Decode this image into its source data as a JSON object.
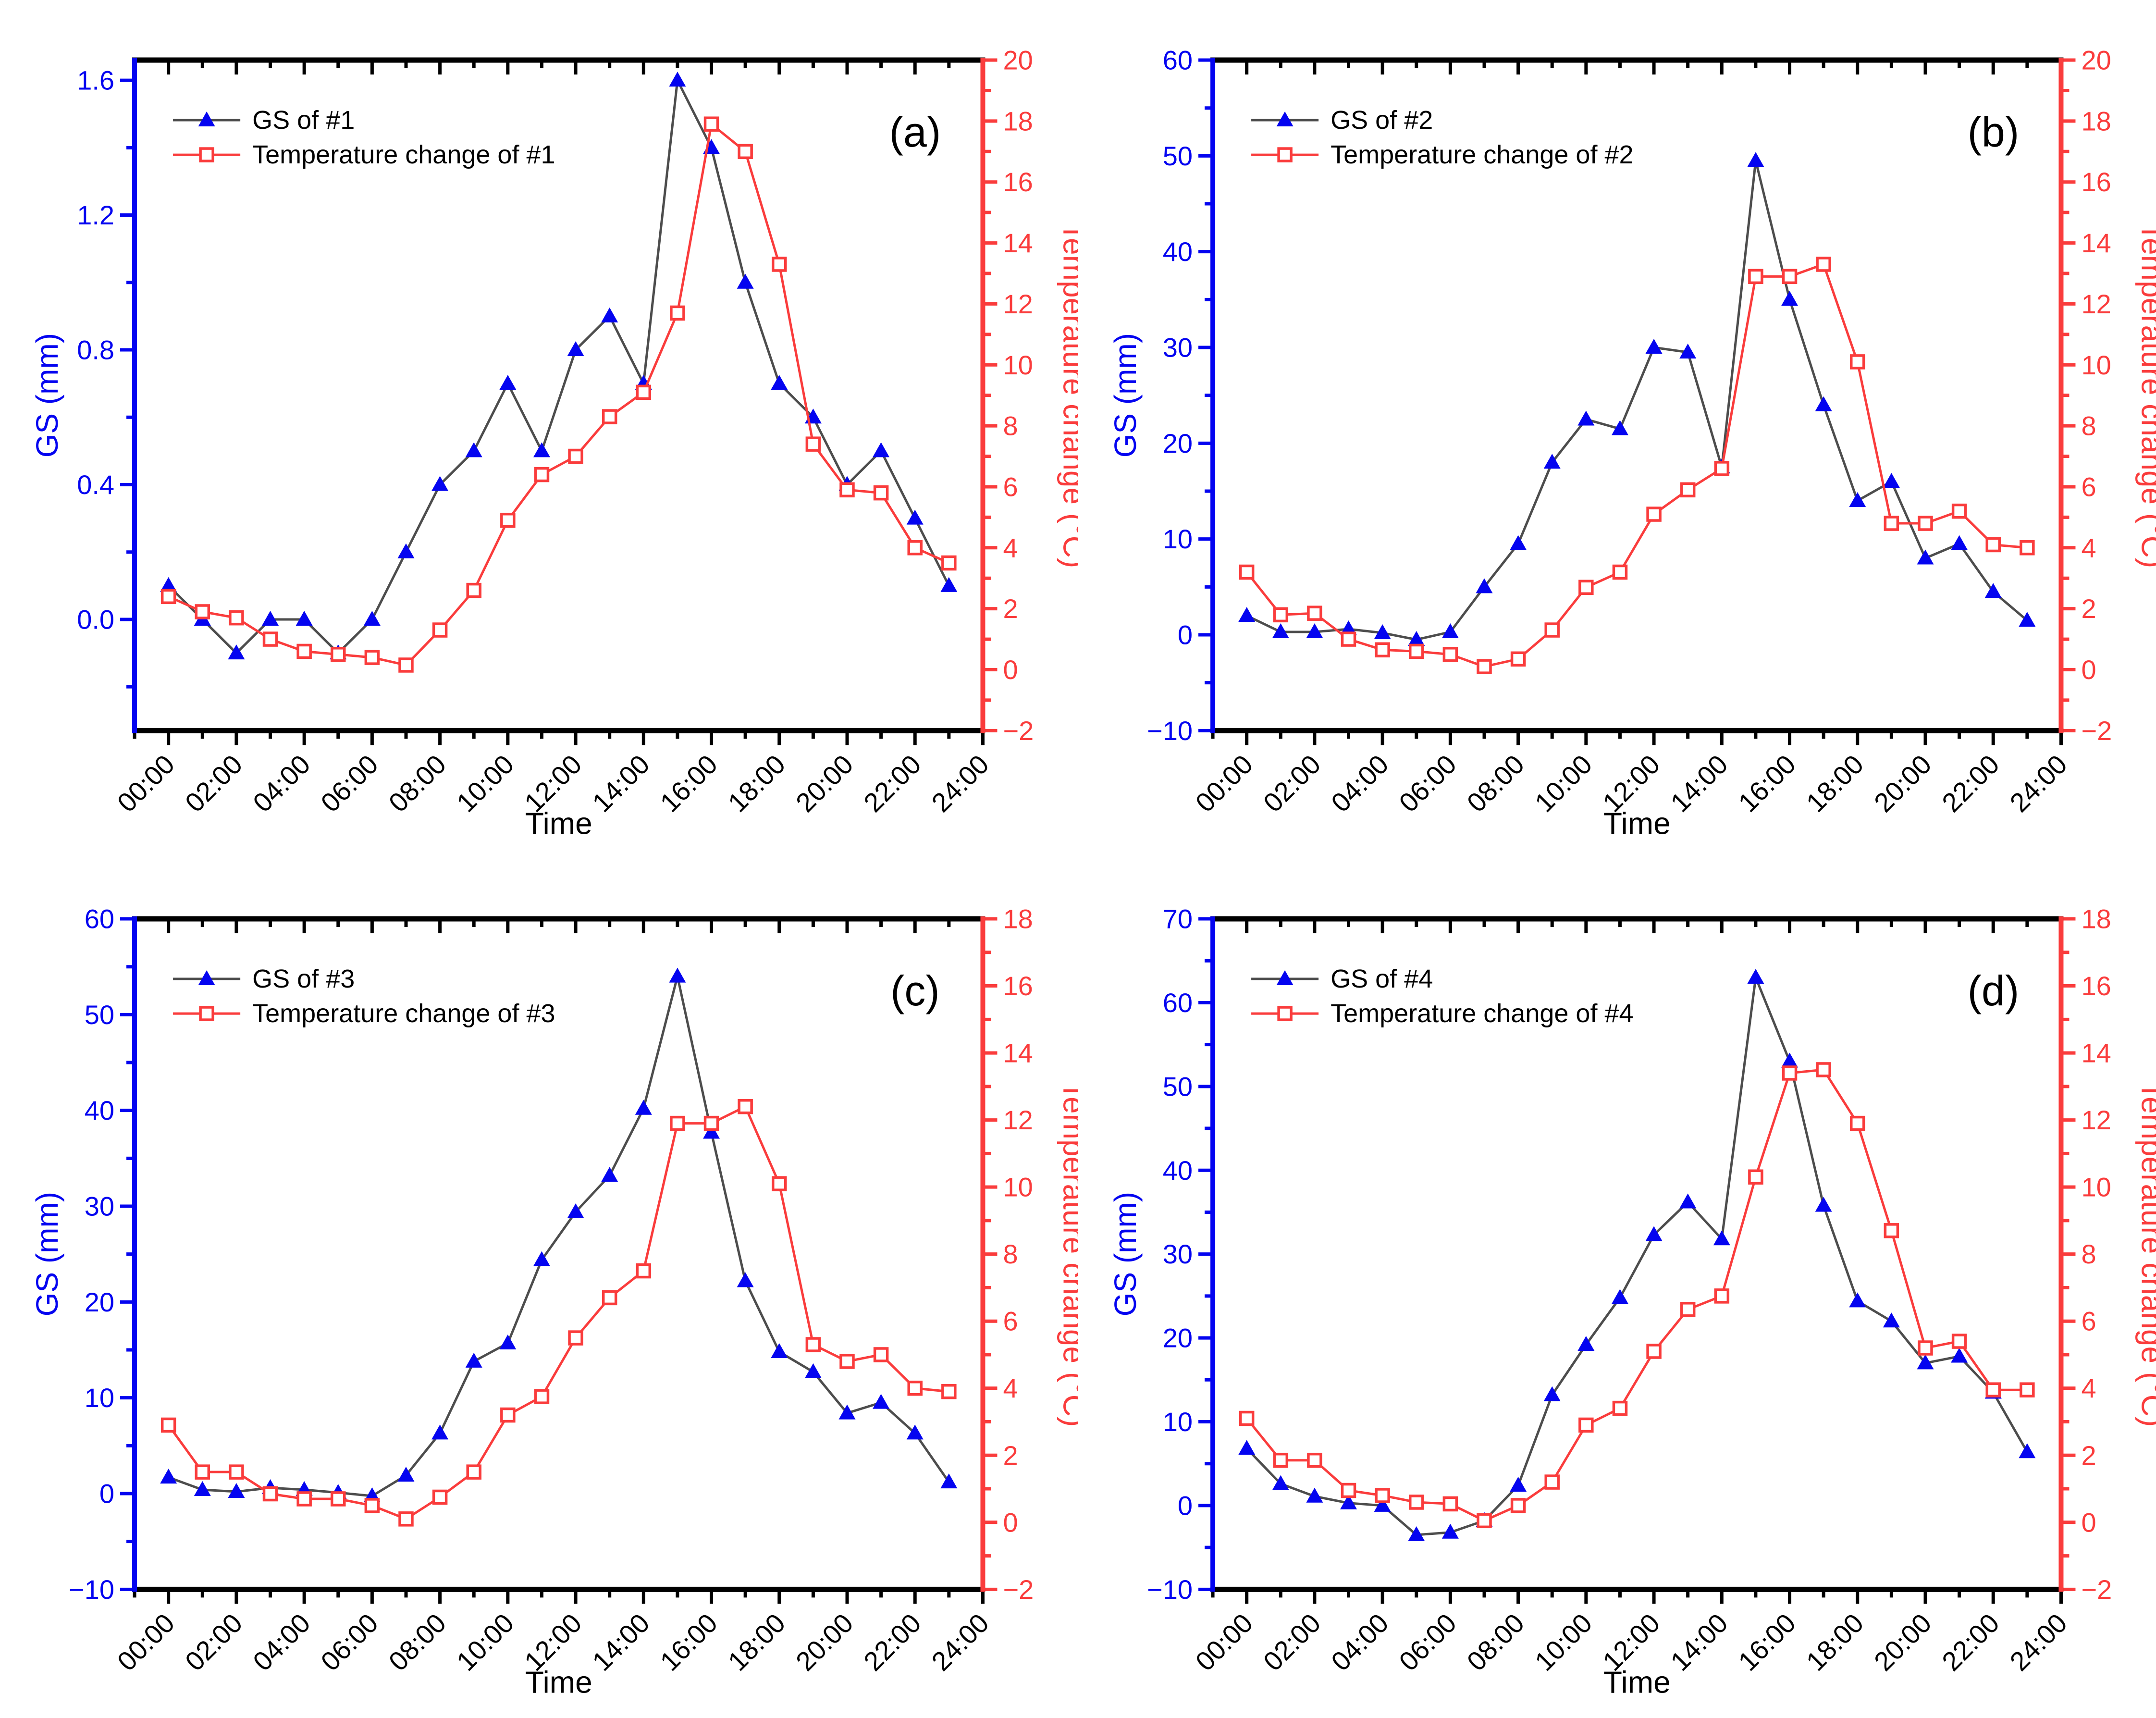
{
  "figure": {
    "xlabel": "Time",
    "left_ylabel": "GS (mm)",
    "right_ylabel": "Temperature change (°C)",
    "colors": {
      "gs_marker_blue": "#0404f0",
      "gs_line_gray": "#4d4d4d",
      "temp_red": "#fa3c3c",
      "left_axis_blue": "#0404f0",
      "right_axis_red": "#fa3c3c",
      "frame_black": "#000000",
      "background": "#ffffff"
    }
  },
  "chart_data": [
    {
      "type": "line",
      "tag": "(a)",
      "xlabel": "Time",
      "left_ylabel": "GS (mm)",
      "right_ylabel": "Temperature change (°C)",
      "legend": [
        "GS of #1",
        "Temperature change of #1"
      ],
      "legend_position": "top-left",
      "grid": false,
      "x_hours": [
        0,
        1,
        2,
        3,
        4,
        5,
        6,
        7,
        8,
        9,
        10,
        11,
        12,
        13,
        14,
        15,
        16,
        17,
        18,
        19,
        20,
        21,
        22,
        23
      ],
      "x_tick_labels": [
        "00:00",
        "02:00",
        "04:00",
        "06:00",
        "08:00",
        "10:00",
        "12:00",
        "14:00",
        "16:00",
        "18:00",
        "20:00",
        "22:00",
        "24:00"
      ],
      "x_axis": {
        "min": -1,
        "max": 24,
        "major_step": 2,
        "minor_step": 1
      },
      "left_axis": {
        "min": -0.33,
        "max": 1.66,
        "major_step": 0.4,
        "minor_step": 0.2,
        "decimals": 1
      },
      "right_axis": {
        "min": -2,
        "max": 20,
        "major_step": 2,
        "minor_step": 1,
        "decimals": 0
      },
      "series": [
        {
          "name": "GS of #1",
          "axis": "left",
          "values": [
            0.1,
            0.0,
            -0.1,
            0.0,
            0.0,
            -0.1,
            0.0,
            0.2,
            0.4,
            0.5,
            0.7,
            0.5,
            0.8,
            0.9,
            0.7,
            1.6,
            1.4,
            1.0,
            0.7,
            0.6,
            0.4,
            0.5,
            0.3,
            0.1
          ]
        },
        {
          "name": "Temperature change of #1",
          "axis": "right",
          "values": [
            2.4,
            1.9,
            1.7,
            1.0,
            0.6,
            0.5,
            0.4,
            0.15,
            1.3,
            2.6,
            4.9,
            6.4,
            7.0,
            8.3,
            9.1,
            11.7,
            17.9,
            17.0,
            13.3,
            7.4,
            5.9,
            5.8,
            4.0,
            3.5
          ]
        }
      ]
    },
    {
      "type": "line",
      "tag": "(b)",
      "xlabel": "Time",
      "left_ylabel": "GS (mm)",
      "right_ylabel": "Temperature change (°C)",
      "legend": [
        "GS of #2",
        "Temperature change of #2"
      ],
      "legend_position": "top-left",
      "grid": false,
      "x_hours": [
        0,
        1,
        2,
        3,
        4,
        5,
        6,
        7,
        8,
        9,
        10,
        11,
        12,
        13,
        14,
        15,
        16,
        17,
        18,
        19,
        20,
        21,
        22,
        23
      ],
      "x_tick_labels": [
        "00:00",
        "02:00",
        "04:00",
        "06:00",
        "08:00",
        "10:00",
        "12:00",
        "14:00",
        "16:00",
        "18:00",
        "20:00",
        "22:00",
        "24:00"
      ],
      "x_axis": {
        "min": -1,
        "max": 24,
        "major_step": 2,
        "minor_step": 1
      },
      "left_axis": {
        "min": -10,
        "max": 60,
        "major_step": 10,
        "minor_step": 5,
        "decimals": 0
      },
      "right_axis": {
        "min": -2,
        "max": 20,
        "major_step": 2,
        "minor_step": 1,
        "decimals": 0
      },
      "series": [
        {
          "name": "GS of #2",
          "axis": "left",
          "values": [
            2,
            0.3,
            0.3,
            0.6,
            0.2,
            -0.5,
            0.3,
            5,
            9.5,
            18,
            22.5,
            21.5,
            30,
            29.5,
            17.5,
            49.5,
            35,
            24,
            14,
            16,
            8,
            9.5,
            4.5,
            1.5
          ]
        },
        {
          "name": "Temperature change of #2",
          "axis": "right",
          "values": [
            3.2,
            1.8,
            1.85,
            1.0,
            0.65,
            0.6,
            0.5,
            0.1,
            0.35,
            1.3,
            2.7,
            3.2,
            5.1,
            5.9,
            6.6,
            12.9,
            12.9,
            13.3,
            10.1,
            4.8,
            4.8,
            5.2,
            4.1,
            4.0
          ]
        }
      ]
    },
    {
      "type": "line",
      "tag": "(c)",
      "xlabel": "Time",
      "left_ylabel": "GS (mm)",
      "right_ylabel": "Temperature change (°C)",
      "legend": [
        "GS of #3",
        "Temperature change of #3"
      ],
      "legend_position": "top-left",
      "grid": false,
      "x_hours": [
        0,
        1,
        2,
        3,
        4,
        5,
        6,
        7,
        8,
        9,
        10,
        11,
        12,
        13,
        14,
        15,
        16,
        17,
        18,
        19,
        20,
        21,
        22,
        23
      ],
      "x_tick_labels": [
        "00:00",
        "02:00",
        "04:00",
        "06:00",
        "08:00",
        "10:00",
        "12:00",
        "14:00",
        "16:00",
        "18:00",
        "20:00",
        "22:00",
        "24:00"
      ],
      "x_axis": {
        "min": -1,
        "max": 24,
        "major_step": 2,
        "minor_step": 1
      },
      "left_axis": {
        "min": -10,
        "max": 60,
        "major_step": 10,
        "minor_step": 5,
        "decimals": 0
      },
      "right_axis": {
        "min": -2,
        "max": 18,
        "major_step": 2,
        "minor_step": 1,
        "decimals": 0
      },
      "series": [
        {
          "name": "GS of #3",
          "axis": "left",
          "values": [
            1.7,
            0.4,
            0.2,
            0.6,
            0.4,
            0.1,
            -0.25,
            1.9,
            6.3,
            13.8,
            15.7,
            24.4,
            29.4,
            33.2,
            40.2,
            54,
            37.7,
            22.2,
            14.8,
            12.7,
            8.4,
            9.5,
            6.3,
            1.2
          ]
        },
        {
          "name": "Temperature change of #3",
          "axis": "right",
          "values": [
            2.9,
            1.5,
            1.5,
            0.85,
            0.7,
            0.7,
            0.5,
            0.1,
            0.75,
            1.5,
            3.2,
            3.75,
            5.5,
            6.7,
            7.5,
            11.9,
            11.9,
            12.4,
            10.1,
            5.3,
            4.8,
            5.0,
            4.0,
            3.9
          ]
        }
      ]
    },
    {
      "type": "line",
      "tag": "(d)",
      "xlabel": "Time",
      "left_ylabel": "GS (mm)",
      "right_ylabel": "Temperature change (°C)",
      "legend": [
        "GS of #4",
        "Temperature change of #4"
      ],
      "legend_position": "top-left",
      "grid": false,
      "x_hours": [
        0,
        1,
        2,
        3,
        4,
        5,
        6,
        7,
        8,
        9,
        10,
        11,
        12,
        13,
        14,
        15,
        16,
        17,
        18,
        19,
        20,
        21,
        22,
        23
      ],
      "x_tick_labels": [
        "00:00",
        "02:00",
        "04:00",
        "06:00",
        "08:00",
        "10:00",
        "12:00",
        "14:00",
        "16:00",
        "18:00",
        "20:00",
        "22:00",
        "24:00"
      ],
      "x_axis": {
        "min": -1,
        "max": 24,
        "major_step": 2,
        "minor_step": 1
      },
      "left_axis": {
        "min": -10,
        "max": 70,
        "major_step": 10,
        "minor_step": 5,
        "decimals": 0
      },
      "right_axis": {
        "min": -2,
        "max": 18,
        "major_step": 2,
        "minor_step": 1,
        "decimals": 0
      },
      "series": [
        {
          "name": "GS of #4",
          "axis": "left",
          "values": [
            6.8,
            2.6,
            1.1,
            0.3,
            0.0,
            -3.5,
            -3.2,
            -1.8,
            2.4,
            13.2,
            19.2,
            24.8,
            32.3,
            36.2,
            31.8,
            63,
            53,
            35.8,
            24.4,
            22,
            17,
            17.8,
            13.5,
            6.4
          ]
        },
        {
          "name": "Temperature change of #4",
          "axis": "right",
          "values": [
            3.1,
            1.85,
            1.85,
            0.95,
            0.8,
            0.6,
            0.55,
            0.05,
            0.5,
            1.2,
            2.9,
            3.4,
            5.1,
            6.35,
            6.75,
            10.3,
            13.4,
            13.5,
            11.9,
            8.7,
            5.2,
            5.4,
            3.95,
            3.95
          ]
        }
      ]
    }
  ]
}
